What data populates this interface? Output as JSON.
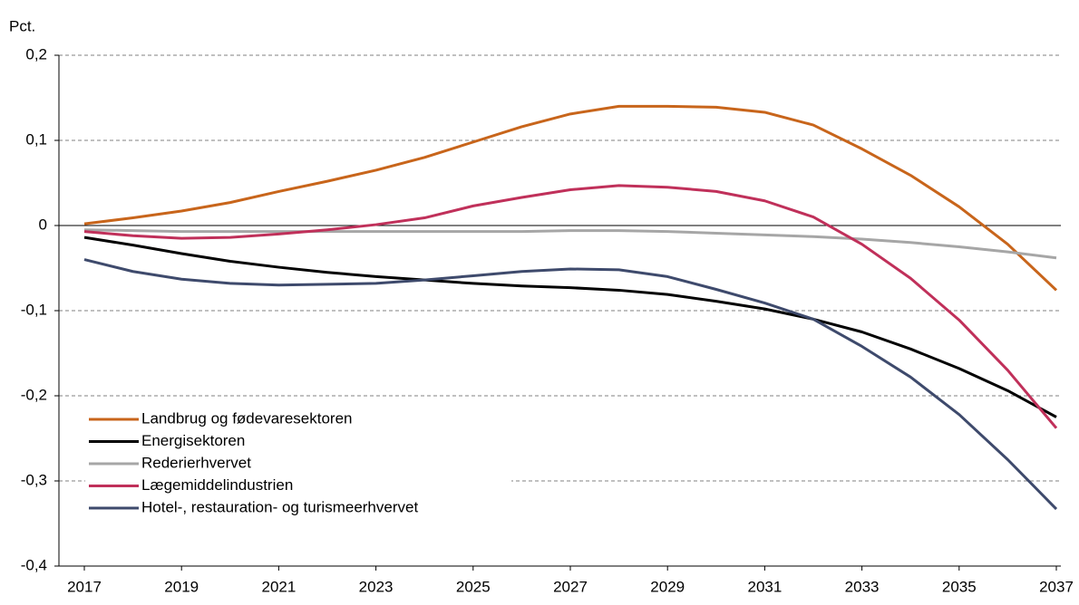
{
  "chart_data": {
    "type": "line",
    "ylabel": "Pct.",
    "x": [
      2017,
      2018,
      2019,
      2020,
      2021,
      2022,
      2023,
      2024,
      2025,
      2026,
      2027,
      2028,
      2029,
      2030,
      2031,
      2032,
      2033,
      2034,
      2035,
      2036,
      2037
    ],
    "xlim": [
      2017,
      2037
    ],
    "xticks": [
      2017,
      2019,
      2021,
      2023,
      2025,
      2027,
      2029,
      2031,
      2033,
      2035,
      2037
    ],
    "ylim": [
      -0.4,
      0.2
    ],
    "yticks": [
      {
        "value": -0.4,
        "label": "-0,4"
      },
      {
        "value": -0.3,
        "label": "-0,3"
      },
      {
        "value": -0.2,
        "label": "-0,2"
      },
      {
        "value": -0.1,
        "label": "-0,1"
      },
      0,
      {
        "value": 0.1,
        "label": "0,1"
      },
      {
        "value": 0.2,
        "label": "0,2"
      }
    ],
    "grid": true,
    "legend": "lower left",
    "series": [
      {
        "name": "Landbrug og fødevaresektoren",
        "color": "#c8651b",
        "values": [
          0.002,
          0.009,
          0.017,
          0.027,
          0.04,
          0.052,
          0.065,
          0.08,
          0.098,
          0.116,
          0.131,
          0.14,
          0.14,
          0.139,
          0.133,
          0.118,
          0.09,
          0.059,
          0.022,
          -0.022,
          -0.076
        ]
      },
      {
        "name": "Energisektoren",
        "color": "#000000",
        "values": [
          -0.014,
          -0.023,
          -0.033,
          -0.042,
          -0.049,
          -0.055,
          -0.06,
          -0.064,
          -0.068,
          -0.071,
          -0.073,
          -0.076,
          -0.081,
          -0.089,
          -0.098,
          -0.11,
          -0.125,
          -0.145,
          -0.168,
          -0.194,
          -0.225
        ]
      },
      {
        "name": "Rederierhvervet",
        "color": "#a6a6a6",
        "values": [
          -0.005,
          -0.006,
          -0.007,
          -0.007,
          -0.007,
          -0.007,
          -0.007,
          -0.007,
          -0.007,
          -0.007,
          -0.006,
          -0.006,
          -0.007,
          -0.009,
          -0.011,
          -0.013,
          -0.016,
          -0.02,
          -0.025,
          -0.031,
          -0.038
        ]
      },
      {
        "name": "Lægemiddelindustrien",
        "color": "#c0305a",
        "values": [
          -0.007,
          -0.012,
          -0.015,
          -0.014,
          -0.01,
          -0.005,
          0.001,
          0.009,
          0.023,
          0.033,
          0.042,
          0.047,
          0.045,
          0.04,
          0.029,
          0.01,
          -0.022,
          -0.062,
          -0.111,
          -0.17,
          -0.238
        ]
      },
      {
        "name": "Hotel-, restauration- og turismeerhvervet",
        "color": "#3e4a6c",
        "values": [
          -0.04,
          -0.054,
          -0.063,
          -0.068,
          -0.07,
          -0.069,
          -0.068,
          -0.064,
          -0.059,
          -0.054,
          -0.051,
          -0.052,
          -0.06,
          -0.075,
          -0.091,
          -0.11,
          -0.142,
          -0.178,
          -0.222,
          -0.275,
          -0.333
        ]
      }
    ]
  }
}
